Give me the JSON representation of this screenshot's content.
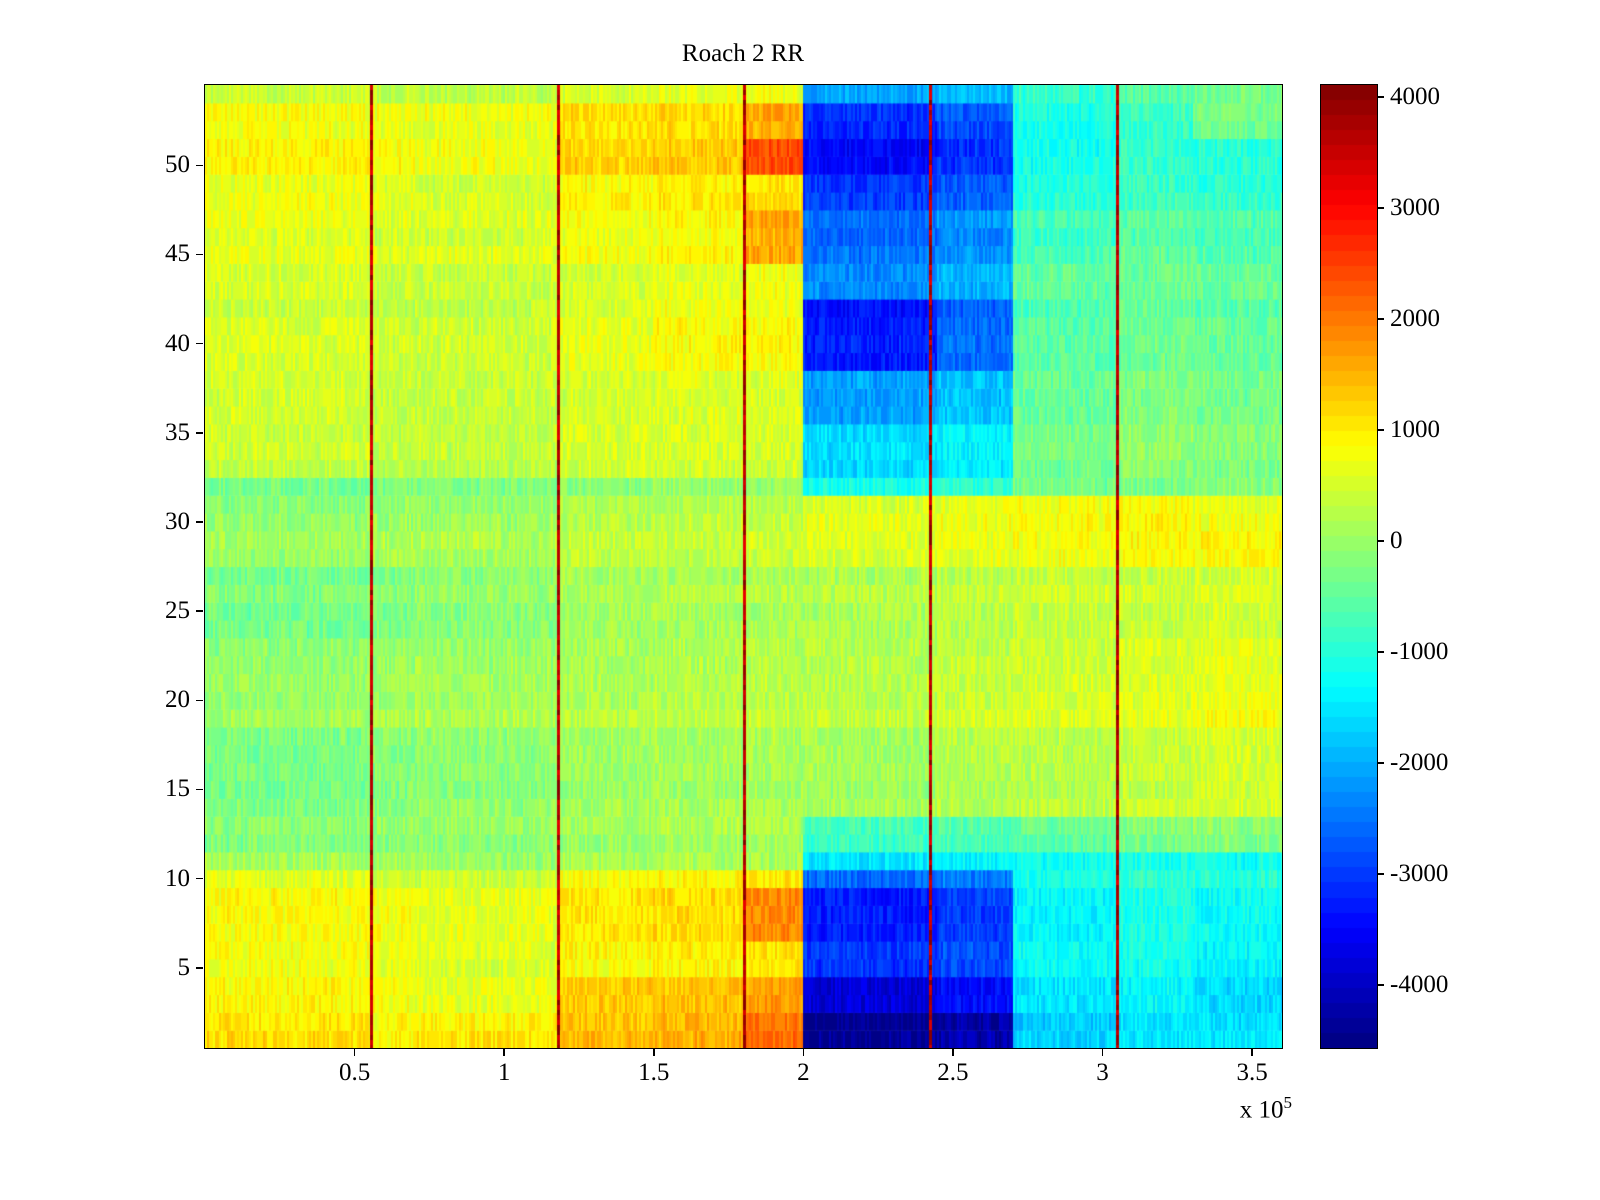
{
  "chart_data": {
    "type": "heatmap",
    "title": "Roach 2 RR",
    "colormap": "jet",
    "x_range": [
      0,
      3.6
    ],
    "x_unit_multiplier": 100000,
    "offset_label": {
      "text": "x 10",
      "exponent": "5"
    },
    "y_range": [
      0.5,
      54.5
    ],
    "n_rows": 54,
    "x_ticks": [
      0.5,
      1,
      1.5,
      2,
      2.5,
      3,
      3.5
    ],
    "y_ticks": [
      5,
      10,
      15,
      20,
      25,
      30,
      35,
      40,
      45,
      50
    ],
    "clim": [
      -4567,
      4108
    ],
    "colorbar_ticks": [
      4000,
      3000,
      2000,
      1000,
      0,
      -1000,
      -2000,
      -3000,
      -4000
    ],
    "legend_position": "right-colorbar",
    "grid": false,
    "segments_x": [
      0,
      0.55,
      0.7,
      1.18,
      1.5,
      1.8,
      2.0,
      2.45,
      2.7,
      3.05,
      3.3,
      3.6
    ],
    "red_lines_x": [
      0.555,
      1.18,
      1.8,
      2.425,
      3.05
    ],
    "red_line_value": 3800,
    "noise": {
      "row": 100,
      "cell": 300
    },
    "row_bands": [
      {
        "rows": [
          1,
          2
        ],
        "values": [
          1100,
          900,
          1000,
          1400,
          1500,
          2100,
          -4400,
          -4200,
          -1700,
          -1500,
          -1500
        ]
      },
      {
        "rows": [
          3,
          4
        ],
        "values": [
          900,
          800,
          700,
          1300,
          1400,
          1700,
          -3800,
          -3400,
          -1500,
          -1300,
          -1600
        ]
      },
      {
        "rows": [
          5,
          6
        ],
        "values": [
          800,
          700,
          600,
          900,
          1000,
          1100,
          -3000,
          -2800,
          -1200,
          -1100,
          -1300
        ]
      },
      {
        "rows": [
          7,
          9
        ],
        "values": [
          900,
          800,
          700,
          1100,
          1200,
          1900,
          -3200,
          -2900,
          -1300,
          -1000,
          -1200
        ]
      },
      {
        "rows": [
          10,
          10
        ],
        "values": [
          600,
          500,
          400,
          800,
          900,
          1000,
          -2600,
          -2400,
          -1100,
          -900,
          -1000
        ]
      },
      {
        "rows": [
          11,
          11
        ],
        "values": [
          100,
          50,
          0,
          100,
          150,
          100,
          -1500,
          -1400,
          -1200,
          -1100,
          -1200
        ]
      },
      {
        "rows": [
          12,
          13
        ],
        "values": [
          -200,
          -150,
          -100,
          0,
          100,
          100,
          -800,
          -700,
          -500,
          -300,
          -200
        ]
      },
      {
        "rows": [
          14,
          18
        ],
        "values": [
          -250,
          -150,
          -100,
          50,
          100,
          150,
          100,
          200,
          300,
          400,
          500
        ]
      },
      {
        "rows": [
          19,
          23
        ],
        "values": [
          0,
          50,
          100,
          200,
          250,
          300,
          300,
          400,
          500,
          600,
          700
        ]
      },
      {
        "rows": [
          24,
          27
        ],
        "values": [
          -300,
          -200,
          -100,
          100,
          150,
          200,
          200,
          300,
          400,
          400,
          500
        ]
      },
      {
        "rows": [
          28,
          29
        ],
        "values": [
          0,
          100,
          100,
          300,
          300,
          400,
          500,
          600,
          700,
          800,
          800
        ]
      },
      {
        "rows": [
          30,
          31
        ],
        "values": [
          -100,
          0,
          0,
          200,
          300,
          300,
          600,
          700,
          800,
          900,
          700
        ]
      },
      {
        "rows": [
          32,
          32
        ],
        "values": [
          -400,
          -300,
          -300,
          -200,
          -100,
          -100,
          -1200,
          -1000,
          -400,
          -300,
          -200
        ]
      },
      {
        "rows": [
          33,
          35
        ],
        "values": [
          400,
          300,
          300,
          500,
          500,
          500,
          -1600,
          -1400,
          -300,
          -100,
          -200
        ]
      },
      {
        "rows": [
          36,
          38
        ],
        "values": [
          500,
          400,
          400,
          500,
          600,
          600,
          -2100,
          -1800,
          -400,
          -200,
          -300
        ]
      },
      {
        "rows": [
          39,
          42
        ],
        "values": [
          500,
          400,
          400,
          600,
          800,
          800,
          -3300,
          -2600,
          -600,
          -400,
          -500
        ]
      },
      {
        "rows": [
          43,
          44
        ],
        "values": [
          500,
          400,
          400,
          500,
          600,
          700,
          -2300,
          -2000,
          -500,
          -400,
          -400
        ]
      },
      {
        "rows": [
          45,
          47
        ],
        "values": [
          600,
          500,
          500,
          700,
          800,
          1500,
          -2600,
          -2300,
          -800,
          -600,
          -700
        ]
      },
      {
        "rows": [
          48,
          49
        ],
        "values": [
          700,
          600,
          500,
          900,
          1000,
          1100,
          -3000,
          -2700,
          -1000,
          -800,
          -900
        ]
      },
      {
        "rows": [
          50,
          51
        ],
        "values": [
          900,
          800,
          700,
          1200,
          1300,
          2400,
          -3500,
          -3100,
          -1200,
          -900,
          -1000
        ]
      },
      {
        "rows": [
          52,
          53
        ],
        "values": [
          800,
          700,
          700,
          1100,
          1200,
          1600,
          -3100,
          -2800,
          -1100,
          -800,
          -300
        ]
      },
      {
        "rows": [
          54,
          54
        ],
        "values": [
          500,
          400,
          400,
          600,
          700,
          800,
          -2000,
          -1800,
          -800,
          -500,
          -200
        ]
      }
    ]
  },
  "colors": {
    "background": "#ffffff",
    "axis": "#000000",
    "text": "#000000"
  }
}
